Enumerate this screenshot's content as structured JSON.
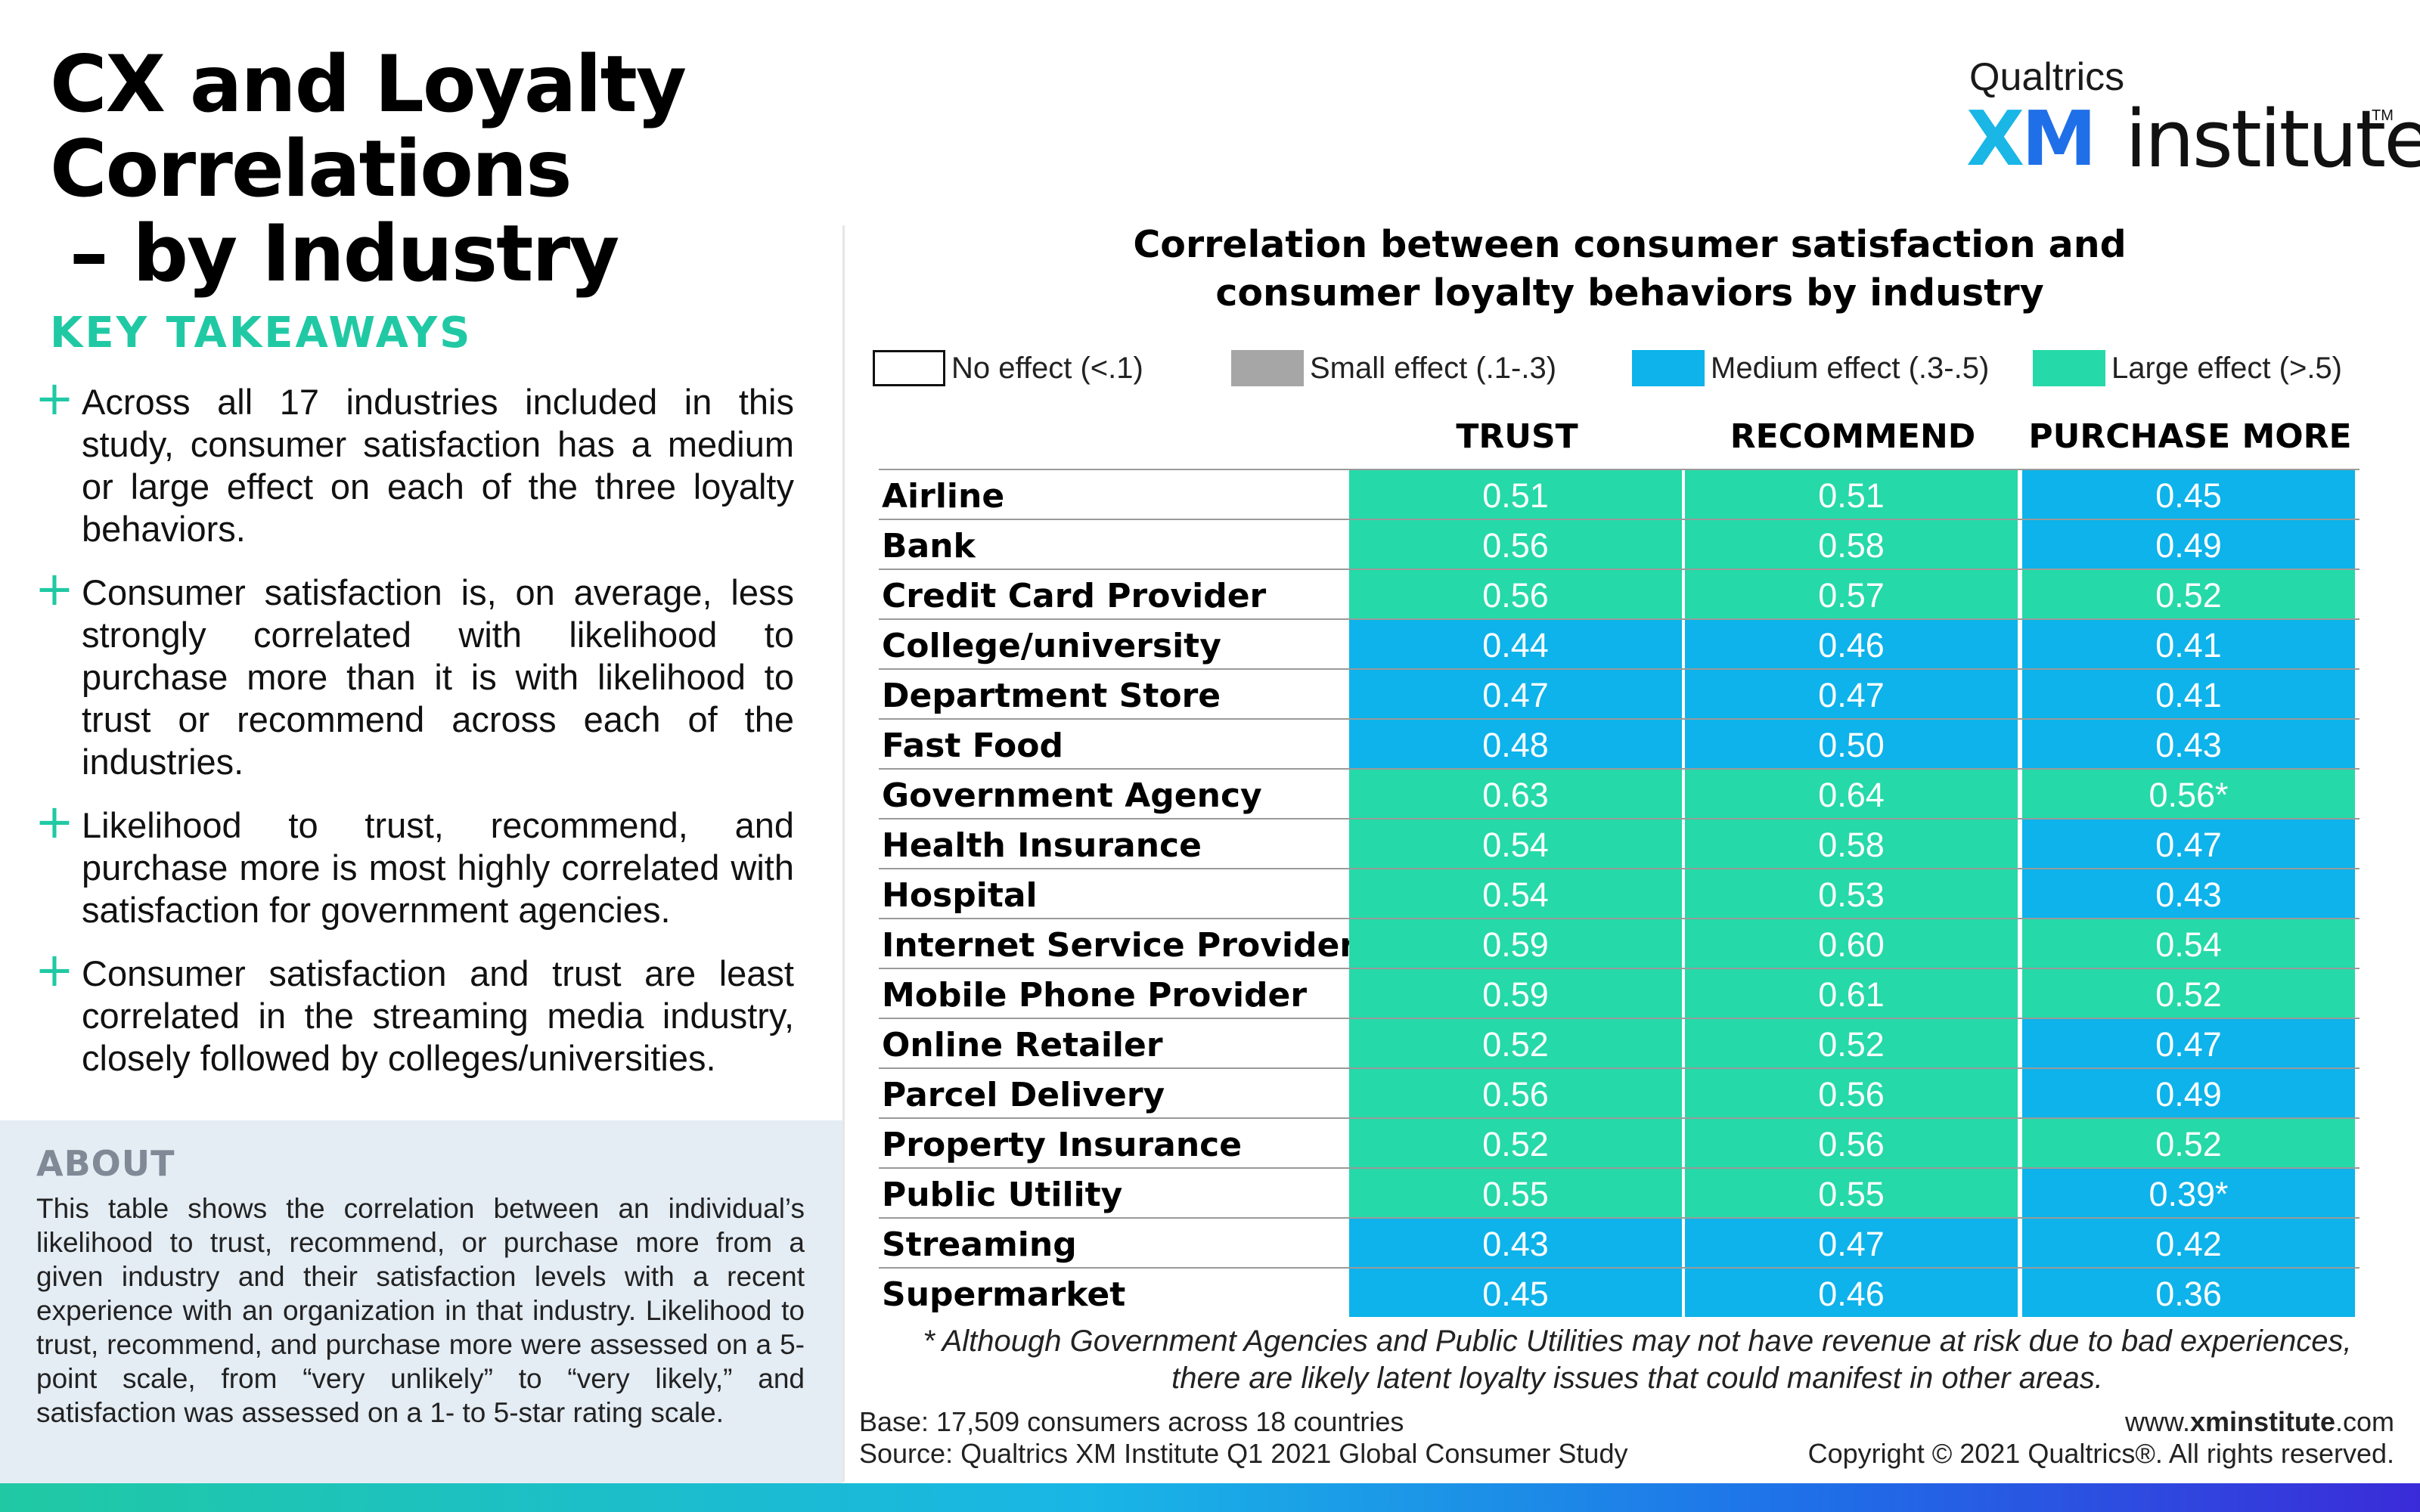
{
  "header": {
    "title_line1": "CX and Loyalty Correlations",
    "title_line2": "– by Industry"
  },
  "logo": {
    "top": "Qualtrics",
    "xm_x": "X",
    "xm_m": "M",
    "institute": "institute",
    "tm": "TM"
  },
  "takeaways": {
    "heading": "KEY TAKEAWAYS",
    "bullet_symbol": "+",
    "items": [
      "Across all 17 industries included in this study, consumer satisfaction has a medium or large effect on each of the three loyalty behaviors.",
      "Consumer satisfaction is, on average, less strongly correlated with likelihood to purchase more than it is with likelihood to trust or recommend across each of the industries.",
      "Likelihood to trust, recommend, and purchase more is most highly correlated with satisfaction for government agencies.",
      "Consumer satisfaction and trust are least correlated in the streaming media industry, closely followed by colleges/universities."
    ]
  },
  "about": {
    "heading": "ABOUT",
    "text": "This table shows the correlation between an individual’s likelihood to trust, recommend, or purchase more from a given industry and their satisfaction levels with a recent experience with an organization in that industry. Likelihood to trust, recommend, and purchase more were assessed on a 5-point scale, from “very unlikely” to “very likely,” and satisfaction was assessed on a 1- to 5-star rating scale."
  },
  "chart_data": {
    "type": "table",
    "title": "Correlation between consumer satisfaction and consumer loyalty behaviors by industry",
    "title_line1": "Correlation between consumer satisfaction and",
    "title_line2": "consumer loyalty behaviors by industry",
    "legend_position": "top",
    "legend": [
      {
        "label": "No effect (<.1)",
        "color": "#ffffff"
      },
      {
        "label": "Small effect (.1-.3)",
        "color": "#a6a6a6"
      },
      {
        "label": "Medium effect (.3-.5)",
        "color": "#0db3ea"
      },
      {
        "label": "Large effect (>.5)",
        "color": "#25d9a8"
      }
    ],
    "columns": [
      "TRUST",
      "RECOMMEND",
      "PURCHASE MORE"
    ],
    "rows": [
      {
        "industry": "Airline",
        "values": [
          "0.51",
          "0.51",
          "0.45"
        ]
      },
      {
        "industry": "Bank",
        "values": [
          "0.56",
          "0.58",
          "0.49"
        ]
      },
      {
        "industry": "Credit Card Provider",
        "values": [
          "0.56",
          "0.57",
          "0.52"
        ]
      },
      {
        "industry": "College/university",
        "values": [
          "0.44",
          "0.46",
          "0.41"
        ]
      },
      {
        "industry": "Department Store",
        "values": [
          "0.47",
          "0.47",
          "0.41"
        ]
      },
      {
        "industry": "Fast Food",
        "values": [
          "0.48",
          "0.50",
          "0.43"
        ]
      },
      {
        "industry": "Government Agency",
        "values": [
          "0.63",
          "0.64",
          "0.56*"
        ]
      },
      {
        "industry": "Health Insurance",
        "values": [
          "0.54",
          "0.58",
          "0.47"
        ]
      },
      {
        "industry": "Hospital",
        "values": [
          "0.54",
          "0.53",
          "0.43"
        ]
      },
      {
        "industry": "Internet Service Provider",
        "values": [
          "0.59",
          "0.60",
          "0.54"
        ]
      },
      {
        "industry": "Mobile Phone Provider",
        "values": [
          "0.59",
          "0.61",
          "0.52"
        ]
      },
      {
        "industry": "Online Retailer",
        "values": [
          "0.52",
          "0.52",
          "0.47"
        ]
      },
      {
        "industry": "Parcel Delivery",
        "values": [
          "0.56",
          "0.56",
          "0.49"
        ]
      },
      {
        "industry": "Property Insurance",
        "values": [
          "0.52",
          "0.56",
          "0.52"
        ]
      },
      {
        "industry": "Public Utility",
        "values": [
          "0.55",
          "0.55",
          "0.39*"
        ]
      },
      {
        "industry": "Streaming",
        "values": [
          "0.43",
          "0.47",
          "0.42"
        ]
      },
      {
        "industry": "Supermarket",
        "values": [
          "0.45",
          "0.46",
          "0.36"
        ]
      }
    ]
  },
  "footnote": {
    "line1": "* Although Government Agencies and Public Utilities may not have revenue at risk due to bad experiences,",
    "line2": "there are likely latent loyalty issues that could manifest in other areas."
  },
  "footer": {
    "base": "Base: 17,509 consumers across 18 countries",
    "source": "Source: Qualtrics XM Institute Q1 2021 Global Consumer Study",
    "url_prefix": "www.",
    "url_bold": "xminstitute",
    "url_suffix": ".com",
    "copyright": "Copyright © 2021 Qualtrics®. All rights reserved."
  }
}
